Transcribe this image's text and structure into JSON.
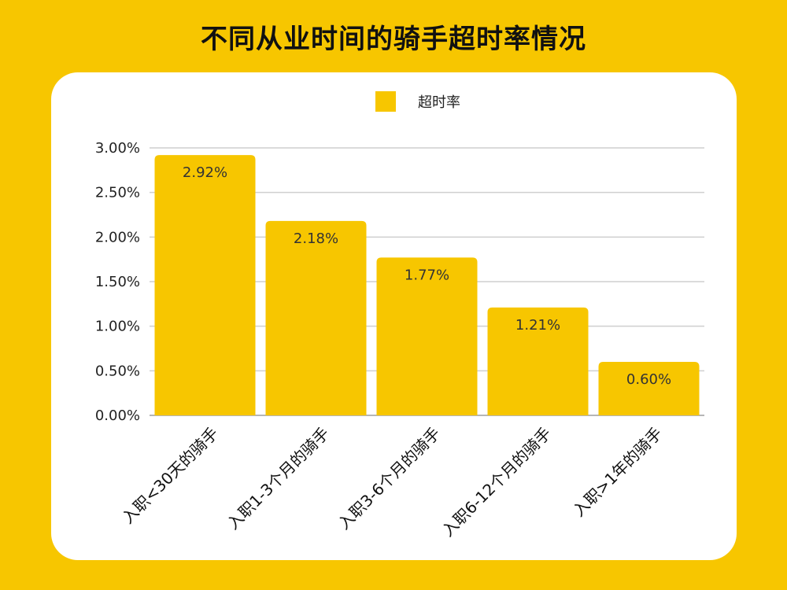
{
  "title": "不同从业时间的骑手超时率情况",
  "colors": {
    "background": "#f7c600",
    "bar": "#f7c600",
    "card": "#ffffff"
  },
  "chart_data": {
    "type": "bar",
    "categories": [
      "入职<30天的骑手",
      "入职1-3个月的骑手",
      "入职3-6个月的骑手",
      "入职6-12个月的骑手",
      "入职>1年的骑手"
    ],
    "series": [
      {
        "name": "超时率",
        "values": [
          2.92,
          2.18,
          1.77,
          1.21,
          0.6
        ]
      }
    ],
    "data_labels": [
      "2.92%",
      "2.18%",
      "1.77%",
      "1.21%",
      "0.60%"
    ],
    "ytick_labels": [
      "0.00%",
      "0.50%",
      "1.00%",
      "1.50%",
      "2.00%",
      "2.50%",
      "3.00%"
    ],
    "ylim": [
      0,
      3.0
    ],
    "y_unit": "%",
    "grid": true,
    "legend": "top-center"
  }
}
